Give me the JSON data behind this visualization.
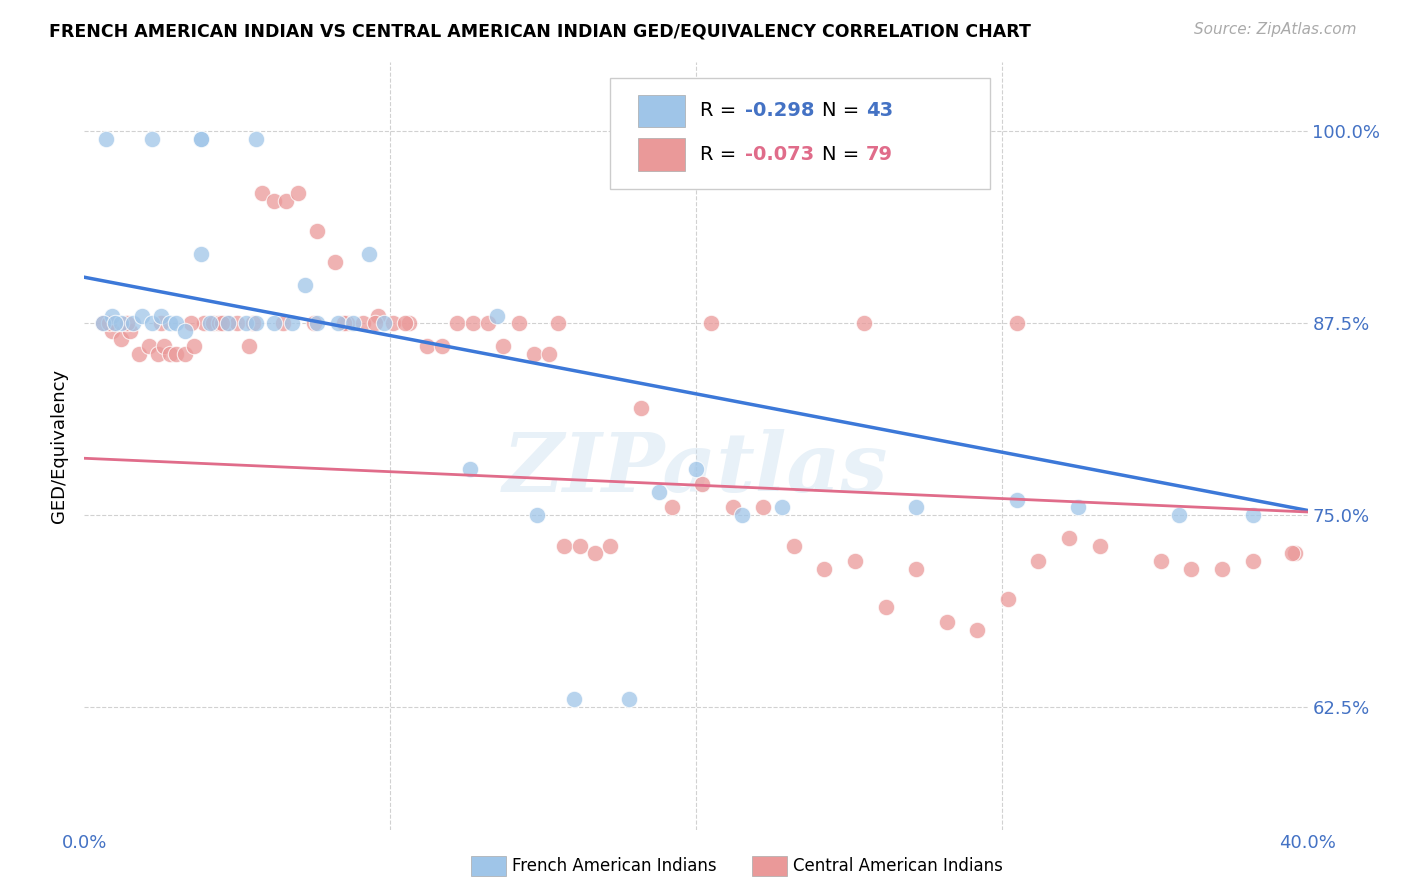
{
  "title": "FRENCH AMERICAN INDIAN VS CENTRAL AMERICAN INDIAN GED/EQUIVALENCY CORRELATION CHART",
  "source": "Source: ZipAtlas.com",
  "ylabel": "GED/Equivalency",
  "yticks_labels": [
    "62.5%",
    "75.0%",
    "87.5%",
    "100.0%"
  ],
  "ytick_vals": [
    0.625,
    0.75,
    0.875,
    1.0
  ],
  "xlim": [
    0.0,
    0.4
  ],
  "ylim": [
    0.545,
    1.045
  ],
  "blue_R": -0.298,
  "blue_N": 43,
  "pink_R": -0.073,
  "pink_N": 79,
  "blue_label": "French American Indians",
  "pink_label": "Central American Indians",
  "blue_color": "#9fc5e8",
  "pink_color": "#ea9999",
  "blue_line_color": "#3c78d8",
  "pink_line_color": "#e06c8a",
  "watermark": "ZIPatlas",
  "blue_line_x": [
    0.0,
    0.4
  ],
  "blue_line_y": [
    0.905,
    0.753
  ],
  "pink_line_x": [
    0.0,
    0.4
  ],
  "pink_line_y": [
    0.787,
    0.752
  ],
  "blue_points_x": [
    0.007,
    0.022,
    0.038,
    0.038,
    0.056,
    0.009,
    0.012,
    0.016,
    0.019,
    0.022,
    0.025,
    0.028,
    0.03,
    0.033,
    0.038,
    0.041,
    0.047,
    0.053,
    0.056,
    0.062,
    0.068,
    0.072,
    0.076,
    0.083,
    0.088,
    0.093,
    0.098,
    0.126,
    0.135,
    0.148,
    0.16,
    0.178,
    0.188,
    0.2,
    0.215,
    0.228,
    0.272,
    0.305,
    0.325,
    0.358,
    0.382,
    0.006,
    0.01
  ],
  "blue_points_y": [
    0.995,
    0.995,
    0.995,
    0.995,
    0.995,
    0.88,
    0.875,
    0.875,
    0.88,
    0.875,
    0.88,
    0.875,
    0.875,
    0.87,
    0.92,
    0.875,
    0.875,
    0.875,
    0.875,
    0.875,
    0.875,
    0.9,
    0.875,
    0.875,
    0.875,
    0.92,
    0.875,
    0.78,
    0.88,
    0.75,
    0.63,
    0.63,
    0.765,
    0.78,
    0.75,
    0.755,
    0.755,
    0.76,
    0.755,
    0.75,
    0.75,
    0.875,
    0.875
  ],
  "pink_points_x": [
    0.006,
    0.009,
    0.012,
    0.015,
    0.018,
    0.021,
    0.024,
    0.026,
    0.028,
    0.03,
    0.033,
    0.036,
    0.039,
    0.042,
    0.044,
    0.047,
    0.05,
    0.054,
    0.058,
    0.062,
    0.066,
    0.07,
    0.076,
    0.082,
    0.086,
    0.091,
    0.096,
    0.101,
    0.106,
    0.112,
    0.117,
    0.122,
    0.127,
    0.132,
    0.137,
    0.142,
    0.147,
    0.152,
    0.157,
    0.162,
    0.167,
    0.172,
    0.182,
    0.192,
    0.202,
    0.212,
    0.222,
    0.232,
    0.242,
    0.252,
    0.262,
    0.272,
    0.282,
    0.292,
    0.302,
    0.312,
    0.322,
    0.332,
    0.352,
    0.362,
    0.372,
    0.382,
    0.396,
    0.008,
    0.014,
    0.025,
    0.035,
    0.045,
    0.055,
    0.065,
    0.075,
    0.085,
    0.095,
    0.105,
    0.155,
    0.205,
    0.255,
    0.305,
    0.395
  ],
  "pink_points_y": [
    0.875,
    0.87,
    0.865,
    0.87,
    0.855,
    0.86,
    0.855,
    0.86,
    0.855,
    0.855,
    0.855,
    0.86,
    0.875,
    0.875,
    0.875,
    0.875,
    0.875,
    0.86,
    0.96,
    0.955,
    0.955,
    0.96,
    0.935,
    0.915,
    0.875,
    0.875,
    0.88,
    0.875,
    0.875,
    0.86,
    0.86,
    0.875,
    0.875,
    0.875,
    0.86,
    0.875,
    0.855,
    0.855,
    0.73,
    0.73,
    0.725,
    0.73,
    0.82,
    0.755,
    0.77,
    0.755,
    0.755,
    0.73,
    0.715,
    0.72,
    0.69,
    0.715,
    0.68,
    0.675,
    0.695,
    0.72,
    0.735,
    0.73,
    0.72,
    0.715,
    0.715,
    0.72,
    0.725,
    0.875,
    0.875,
    0.875,
    0.875,
    0.875,
    0.875,
    0.875,
    0.875,
    0.875,
    0.875,
    0.875,
    0.875,
    0.875,
    0.875,
    0.875,
    0.725
  ]
}
